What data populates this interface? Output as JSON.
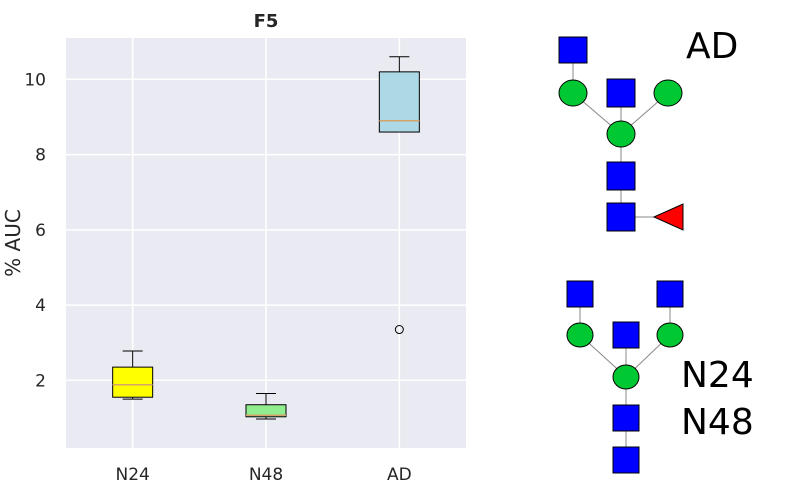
{
  "chart_data": {
    "type": "box",
    "title": "F5",
    "xlabel": "",
    "ylabel": "% AUC",
    "ylim": [
      0.2,
      11.1
    ],
    "yticks": [
      2,
      4,
      6,
      8,
      10
    ],
    "grid": true,
    "categories": [
      "N24",
      "N48",
      "AD"
    ],
    "boxes": [
      {
        "category": "N24",
        "whisker_low": 1.5,
        "q1": 1.55,
        "median": 1.88,
        "q3": 2.35,
        "whisker_high": 2.78,
        "outliers": []
      },
      {
        "category": "N48",
        "whisker_low": 0.97,
        "q1": 1.03,
        "median": 1.07,
        "q3": 1.35,
        "whisker_high": 1.65,
        "outliers": []
      },
      {
        "category": "AD",
        "whisker_low": 8.6,
        "q1": 8.6,
        "median": 8.9,
        "q3": 10.2,
        "whisker_high": 10.6,
        "outliers": [
          3.35
        ]
      }
    ],
    "colors": {
      "N24": "#ffff00",
      "N48": "#90ee90",
      "AD": "#add8e6",
      "median": "#d4a36a",
      "plot_bg": "#eaeaf2",
      "grid": "#ffffff"
    }
  },
  "glycans": {
    "top": {
      "label": "AD",
      "icons": [
        "blue-square-GlcNAc",
        "green-circle-Man",
        "red-triangle-Fuc"
      ]
    },
    "bottom": {
      "label_1": "N24",
      "label_2": "N48",
      "icons": [
        "blue-square-GlcNAc",
        "green-circle-Man"
      ]
    },
    "colors": {
      "square": "#0000ff",
      "circle": "#00c832",
      "triangle": "#ff0000",
      "link": "#888888"
    }
  }
}
